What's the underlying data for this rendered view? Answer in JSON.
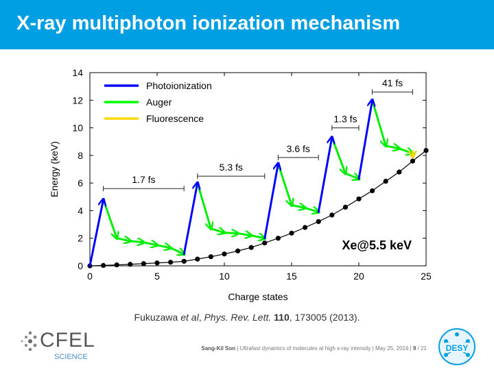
{
  "slide": {
    "title": "X-ray multiphoton ionization mechanism",
    "citation": {
      "authors": "Fukuzawa ",
      "etal": "et al",
      "sep": ", ",
      "journal": "Phys. Rev. Lett.",
      "volume": "110",
      "rest": ", 173005 (2013)."
    },
    "footer": {
      "author": "Sang-Kil Son",
      "talk": "Ultrafast dynamics of molecules at high x-ray intensity",
      "date": "May 25, 2016",
      "page": "9",
      "total": "/ 21"
    },
    "logos": {
      "cfel": "CFEL",
      "cfel_sub": "SCIENCE",
      "desy": "DESY"
    }
  },
  "chart_data": {
    "type": "line",
    "xlabel": "Charge states",
    "ylabel": "Energy (keV)",
    "xlim": [
      0,
      25
    ],
    "ylim": [
      0,
      14
    ],
    "xticks": [
      0,
      5,
      10,
      15,
      20,
      25
    ],
    "yticks": [
      0,
      2,
      4,
      6,
      8,
      10,
      12,
      14
    ],
    "annotation": "Xe@5.5 keV",
    "legend": {
      "placement": "top-left",
      "entries": [
        {
          "label": "Photoionization",
          "color": "#0000ff"
        },
        {
          "label": "Auger",
          "color": "#00ff00"
        },
        {
          "label": "Fluorescence",
          "color": "#ffd700"
        }
      ]
    },
    "curve": {
      "x": [
        0,
        1,
        2,
        3,
        4,
        5,
        6,
        7,
        8,
        9,
        10,
        11,
        12,
        13,
        14,
        15,
        16,
        17,
        18,
        19,
        20,
        21,
        22,
        23,
        24,
        25
      ],
      "y": [
        0,
        0.03,
        0.07,
        0.11,
        0.16,
        0.21,
        0.26,
        0.33,
        0.49,
        0.66,
        0.86,
        1.08,
        1.33,
        1.66,
        2.0,
        2.37,
        2.78,
        3.21,
        3.68,
        4.25,
        4.85,
        5.44,
        6.13,
        6.8,
        7.59,
        8.36
      ]
    },
    "photoionization": [
      {
        "from": [
          0,
          0.0
        ],
        "to": [
          1,
          4.8
        ]
      },
      {
        "from": [
          7,
          0.85
        ],
        "to": [
          8,
          6.0
        ]
      },
      {
        "from": [
          13,
          2.0
        ],
        "to": [
          14,
          7.4
        ]
      },
      {
        "from": [
          17,
          3.9
        ],
        "to": [
          18,
          9.3
        ]
      },
      {
        "from": [
          20,
          6.3
        ],
        "to": [
          21,
          12.0
        ]
      }
    ],
    "auger": [
      {
        "from": [
          1,
          4.8
        ],
        "to": [
          2,
          2.0
        ]
      },
      {
        "from": [
          2,
          2.0
        ],
        "to": [
          3,
          1.8
        ]
      },
      {
        "from": [
          3,
          1.8
        ],
        "to": [
          4,
          1.7
        ]
      },
      {
        "from": [
          4,
          1.7
        ],
        "to": [
          5,
          1.5
        ]
      },
      {
        "from": [
          5,
          1.5
        ],
        "to": [
          6,
          1.3
        ]
      },
      {
        "from": [
          6,
          1.3
        ],
        "to": [
          7,
          0.85
        ]
      },
      {
        "from": [
          8,
          6.0
        ],
        "to": [
          9,
          2.7
        ]
      },
      {
        "from": [
          9,
          2.7
        ],
        "to": [
          10,
          2.4
        ]
      },
      {
        "from": [
          10,
          2.4
        ],
        "to": [
          11,
          2.35
        ]
      },
      {
        "from": [
          11,
          2.35
        ],
        "to": [
          12,
          2.2
        ]
      },
      {
        "from": [
          12,
          2.2
        ],
        "to": [
          13,
          2.0
        ]
      },
      {
        "from": [
          14,
          7.4
        ],
        "to": [
          15,
          4.4
        ]
      },
      {
        "from": [
          15,
          4.4
        ],
        "to": [
          16,
          4.2
        ]
      },
      {
        "from": [
          16,
          4.2
        ],
        "to": [
          17,
          3.9
        ]
      },
      {
        "from": [
          18,
          9.3
        ],
        "to": [
          19,
          6.7
        ]
      },
      {
        "from": [
          19,
          6.7
        ],
        "to": [
          20,
          6.3
        ]
      },
      {
        "from": [
          21,
          12.0
        ],
        "to": [
          22,
          8.7
        ]
      },
      {
        "from": [
          22,
          8.7
        ],
        "to": [
          23,
          8.5
        ]
      },
      {
        "from": [
          23,
          8.5
        ],
        "to": [
          24,
          8.15
        ]
      }
    ],
    "fluorescence": [
      {
        "from": [
          24,
          8.3
        ],
        "to": [
          24,
          7.9
        ]
      }
    ],
    "intervals": [
      {
        "label": "1.7 fs",
        "x1": 1,
        "x2": 7,
        "y": 5.6
      },
      {
        "label": "5.3 fs",
        "x1": 8,
        "x2": 13,
        "y": 6.5
      },
      {
        "label": "3.6 fs",
        "x1": 14,
        "x2": 17,
        "y": 7.85
      },
      {
        "label": "1.3 fs",
        "x1": 18,
        "x2": 20,
        "y": 10.0
      },
      {
        "label": "41 fs",
        "x1": 21,
        "x2": 24,
        "y": 12.6
      }
    ]
  }
}
